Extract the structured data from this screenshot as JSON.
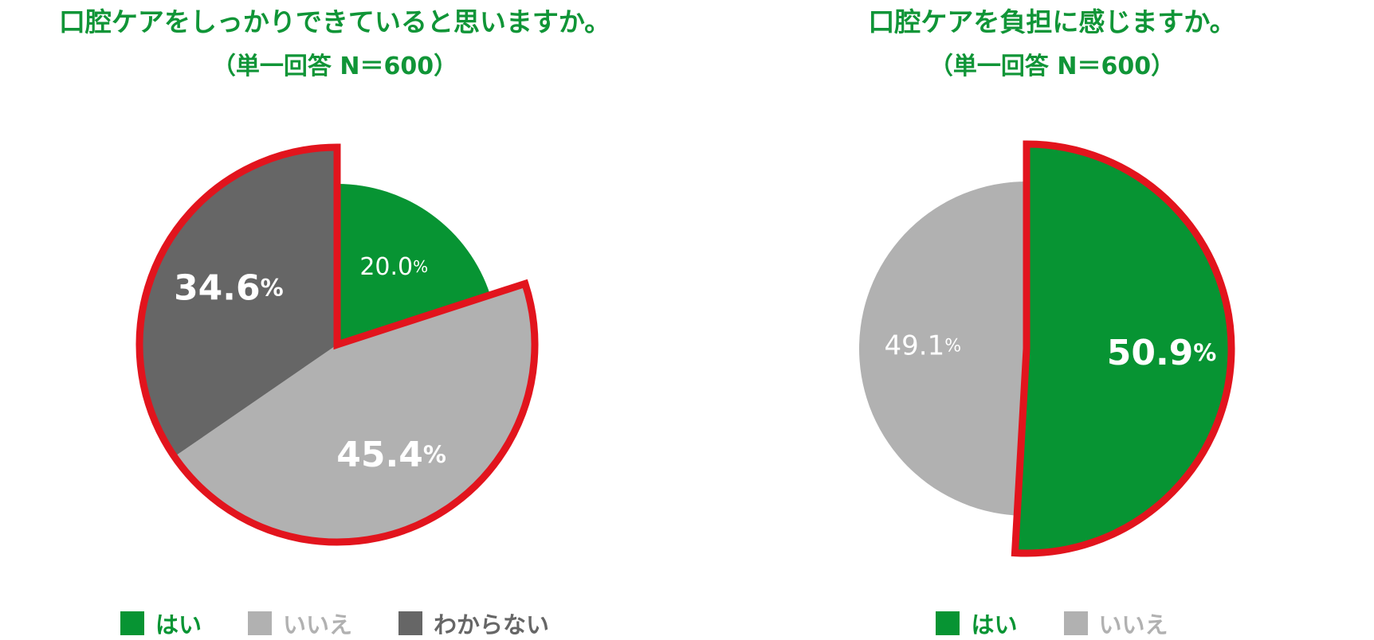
{
  "colors": {
    "title": "#109537",
    "yes": "#079433",
    "no": "#b1b1b1",
    "unknown": "#666666",
    "highlight": "#e2141d",
    "label_light": "#ffffff"
  },
  "chart_data": [
    {
      "type": "pie",
      "title": "口腔ケアをしっかりできていると思いますか。",
      "subtitle": "（単一回答 N＝600）",
      "categories": [
        "はい",
        "いいえ",
        "わからない"
      ],
      "values": [
        20.0,
        45.4,
        34.6
      ],
      "unit": "%",
      "value_labels": [
        "20.0",
        "45.4",
        "34.6"
      ],
      "slice_colors": [
        "#079433",
        "#b1b1b1",
        "#666666"
      ],
      "exploded": [
        false,
        true,
        true
      ],
      "highlighted": [
        false,
        true,
        true
      ],
      "start_angle": "12 o'clock, clockwise",
      "legend_position": "bottom"
    },
    {
      "type": "pie",
      "title": "口腔ケアを負担に感じますか。",
      "subtitle": "（単一回答 N＝600）",
      "categories": [
        "はい",
        "いいえ"
      ],
      "values": [
        50.9,
        49.1
      ],
      "unit": "%",
      "value_labels": [
        "50.9",
        "49.1"
      ],
      "slice_colors": [
        "#079433",
        "#b1b1b1"
      ],
      "exploded": [
        true,
        false
      ],
      "highlighted": [
        true,
        false
      ],
      "start_angle": "12 o'clock, clockwise",
      "legend_position": "bottom"
    }
  ],
  "legends": [
    {
      "items": [
        {
          "label": "はい",
          "color": "#079433"
        },
        {
          "label": "いいえ",
          "color": "#b1b1b1"
        },
        {
          "label": "わからない",
          "color": "#666666"
        }
      ]
    },
    {
      "items": [
        {
          "label": "はい",
          "color": "#079433"
        },
        {
          "label": "いいえ",
          "color": "#b1b1b1"
        }
      ]
    }
  ]
}
